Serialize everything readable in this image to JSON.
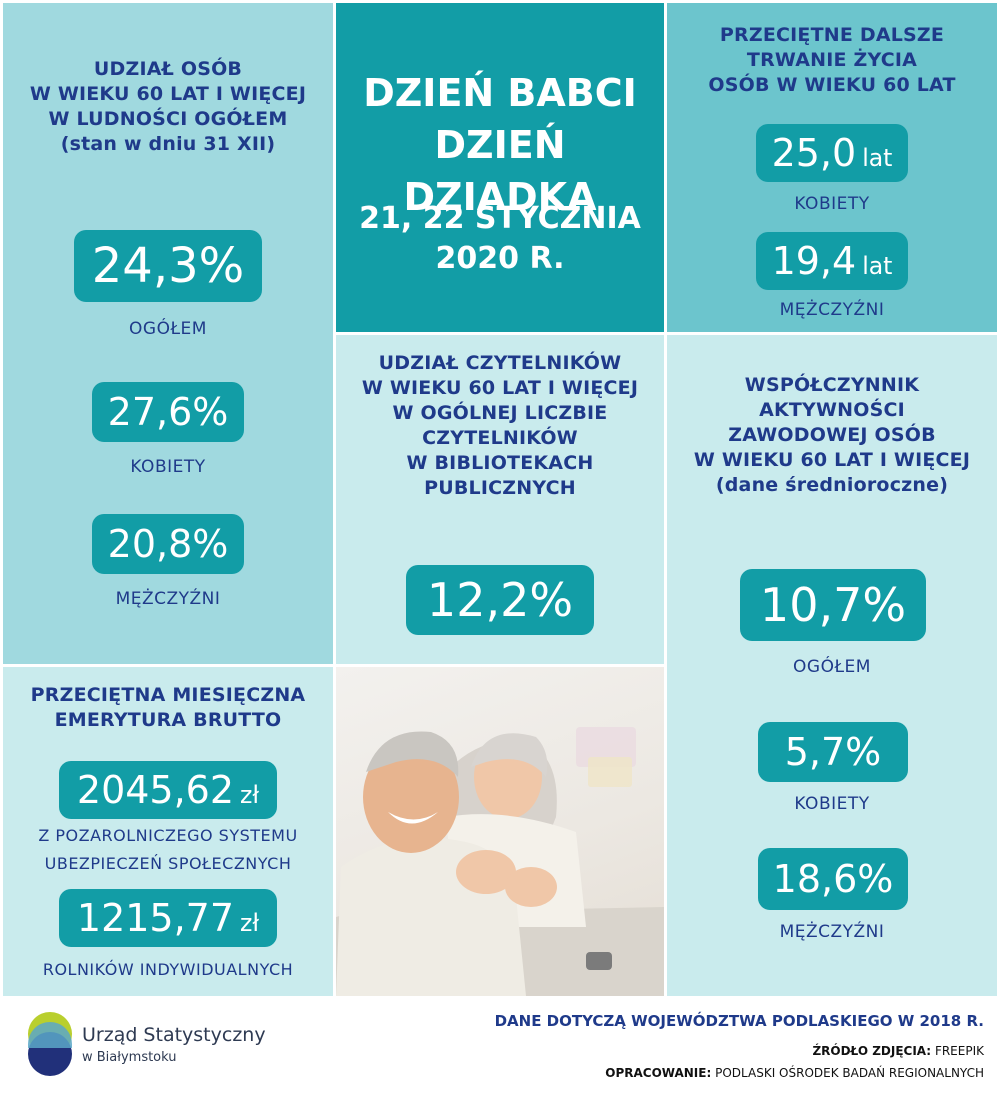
{
  "share_60_plus": {
    "heading": "UDZIAŁ OSÓB\nW WIEKU 60 LAT I WIĘCEJ\nW LUDNOŚCI OGÓŁEM\n(stan w dniu 31 XII)",
    "total_value": "24,3%",
    "total_label": "OGÓŁEM",
    "women_value": "27,6%",
    "women_label": "KOBIETY",
    "men_value": "20,8%",
    "men_label": "MĘŻCZYŹNI"
  },
  "title": {
    "line1": "DZIEŃ BABCI\nDZIEŃ DZIADKA",
    "line2": "21, 22 STYCZNIA\n2020 R."
  },
  "life_expectancy": {
    "heading": "PRZECIĘTNE DALSZE\nTRWANIE ŻYCIA\nOSÓB W WIEKU 60 LAT",
    "women_value": "25,0",
    "women_unit": "lat",
    "women_label": "KOBIETY",
    "men_value": "19,4",
    "men_unit": "lat",
    "men_label": "MĘŻCZYŹNI"
  },
  "readers": {
    "heading": "UDZIAŁ CZYTELNIKÓW\nW WIEKU 60 LAT I WIĘCEJ\nW OGÓLNEJ LICZBIE\nCZYTELNIKÓW\nW BIBLIOTEKACH\nPUBLICZNYCH",
    "value": "12,2%"
  },
  "activity": {
    "heading": "WSPÓŁCZYNNIK\nAKTYWNOŚCI\nZAWODOWEJ OSÓB\nW WIEKU 60 LAT I WIĘCEJ\n(dane średnioroczne)",
    "total_value": "10,7%",
    "total_label": "OGÓŁEM",
    "women_value": "5,7%",
    "women_label": "KOBIETY",
    "men_value": "18,6%",
    "men_label": "MĘŻCZYŹNI"
  },
  "pension": {
    "heading": "PRZECIĘTNA MIESIĘCZNA\nEMERYTURA BRUTTO",
    "non_agri_value": "2045,62",
    "non_agri_unit": "zł",
    "non_agri_label": "Z POZAROLNICZEGO SYSTEMU\nUBEZPIECZEŃ SPOŁECZNYCH",
    "farmers_value": "1215,77",
    "farmers_unit": "zł",
    "farmers_label": "ROLNIKÓW INDYWIDUALNYCH"
  },
  "footer": {
    "logo_line1": "Urząd Statystyczny",
    "logo_line2": "w Białymstoku",
    "region_note": "DANE DOTYCZĄ WOJEWÓDZTWA PODLASKIEGO W 2018 R.",
    "photo_source_label": "ŹRÓDŁO ZDJĘCIA:",
    "photo_source_value": "FREEPIK",
    "prepared_label": "OPRACOWANIE:",
    "prepared_value": "PODLASKI OŚRODEK BADAŃ REGIONALNYCH"
  },
  "colors": {
    "teal_dark": "#129da6",
    "teal_light": "#a0d9df",
    "teal_pale": "#c9ebed",
    "teal_mid": "#6cc5cd",
    "navy_text": "#1f3a8a"
  }
}
